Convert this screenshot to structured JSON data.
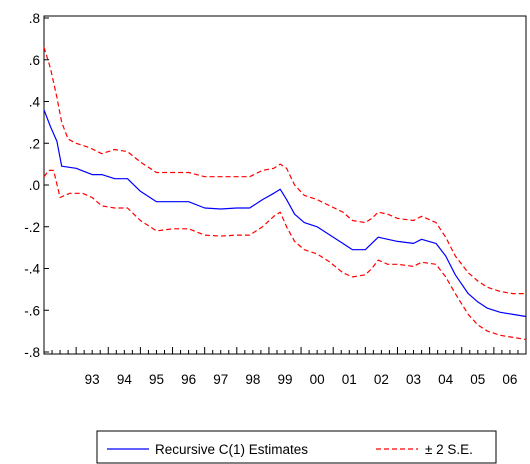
{
  "chart_data": {
    "type": "line",
    "title": "",
    "xlabel": "",
    "ylabel": "",
    "ylim": [
      -0.8,
      0.8
    ],
    "xlim": [
      1992.0,
      2007.0
    ],
    "grid": false,
    "legend_position": "bottom",
    "y_ticks": [
      {
        "value": 0.8,
        "label": ".8"
      },
      {
        "value": 0.6,
        "label": ".6"
      },
      {
        "value": 0.4,
        "label": ".4"
      },
      {
        "value": 0.2,
        "label": ".2"
      },
      {
        "value": 0.0,
        "label": ".0"
      },
      {
        "value": -0.2,
        "label": "-.2"
      },
      {
        "value": -0.4,
        "label": "-.4"
      },
      {
        "value": -0.6,
        "label": "-.6"
      },
      {
        "value": -0.8,
        "label": "-.8"
      }
    ],
    "x_ticks": [
      {
        "value": 1993.5,
        "label": "93"
      },
      {
        "value": 1994.5,
        "label": "94"
      },
      {
        "value": 1995.5,
        "label": "95"
      },
      {
        "value": 1996.5,
        "label": "96"
      },
      {
        "value": 1997.5,
        "label": "97"
      },
      {
        "value": 1998.5,
        "label": "98"
      },
      {
        "value": 1999.5,
        "label": "99"
      },
      {
        "value": 2000.5,
        "label": "00"
      },
      {
        "value": 2001.5,
        "label": "01"
      },
      {
        "value": 2002.5,
        "label": "02"
      },
      {
        "value": 2003.5,
        "label": "03"
      },
      {
        "value": 2004.5,
        "label": "04"
      },
      {
        "value": 2005.5,
        "label": "05"
      },
      {
        "value": 2006.5,
        "label": "06"
      }
    ],
    "series": [
      {
        "name": "Recursive C(1) Estimates",
        "color": "#0000ff",
        "style": "solid",
        "points": [
          [
            1992.0,
            0.36
          ],
          [
            1992.2,
            0.28
          ],
          [
            1992.4,
            0.21
          ],
          [
            1992.55,
            0.09
          ],
          [
            1993.0,
            0.08
          ],
          [
            1993.5,
            0.05
          ],
          [
            1993.8,
            0.05
          ],
          [
            1994.2,
            0.03
          ],
          [
            1994.6,
            0.03
          ],
          [
            1995.0,
            -0.03
          ],
          [
            1995.5,
            -0.08
          ],
          [
            1996.0,
            -0.08
          ],
          [
            1996.5,
            -0.08
          ],
          [
            1997.0,
            -0.11
          ],
          [
            1997.5,
            -0.115
          ],
          [
            1998.0,
            -0.11
          ],
          [
            1998.4,
            -0.11
          ],
          [
            1998.8,
            -0.07
          ],
          [
            1999.15,
            -0.04
          ],
          [
            1999.35,
            -0.02
          ],
          [
            1999.55,
            -0.07
          ],
          [
            1999.8,
            -0.14
          ],
          [
            2000.1,
            -0.18
          ],
          [
            2000.5,
            -0.2
          ],
          [
            2000.9,
            -0.24
          ],
          [
            2001.3,
            -0.28
          ],
          [
            2001.6,
            -0.31
          ],
          [
            2002.0,
            -0.31
          ],
          [
            2002.2,
            -0.28
          ],
          [
            2002.4,
            -0.25
          ],
          [
            2002.7,
            -0.26
          ],
          [
            2003.0,
            -0.27
          ],
          [
            2003.5,
            -0.28
          ],
          [
            2003.75,
            -0.26
          ],
          [
            2004.2,
            -0.28
          ],
          [
            2004.5,
            -0.34
          ],
          [
            2004.8,
            -0.43
          ],
          [
            2005.2,
            -0.52
          ],
          [
            2005.5,
            -0.56
          ],
          [
            2005.8,
            -0.59
          ],
          [
            2006.2,
            -0.61
          ],
          [
            2006.6,
            -0.62
          ],
          [
            2007.0,
            -0.63
          ]
        ]
      },
      {
        "name": "± 2 S.E.",
        "color": "#ff0000",
        "style": "dashed",
        "points": [
          [
            1992.0,
            0.66
          ],
          [
            1992.2,
            0.56
          ],
          [
            1992.4,
            0.42
          ],
          [
            1992.55,
            0.3
          ],
          [
            1992.75,
            0.22
          ],
          [
            1993.0,
            0.2
          ],
          [
            1993.4,
            0.18
          ],
          [
            1993.8,
            0.15
          ],
          [
            1994.2,
            0.17
          ],
          [
            1994.6,
            0.16
          ],
          [
            1995.0,
            0.11
          ],
          [
            1995.5,
            0.06
          ],
          [
            1996.0,
            0.06
          ],
          [
            1996.5,
            0.06
          ],
          [
            1997.0,
            0.04
          ],
          [
            1997.5,
            0.04
          ],
          [
            1998.0,
            0.04
          ],
          [
            1998.4,
            0.04
          ],
          [
            1998.8,
            0.07
          ],
          [
            1999.15,
            0.08
          ],
          [
            1999.35,
            0.1
          ],
          [
            1999.55,
            0.08
          ],
          [
            1999.8,
            0.0
          ],
          [
            2000.1,
            -0.05
          ],
          [
            2000.5,
            -0.07
          ],
          [
            2000.9,
            -0.1
          ],
          [
            2001.3,
            -0.13
          ],
          [
            2001.6,
            -0.17
          ],
          [
            2002.0,
            -0.18
          ],
          [
            2002.2,
            -0.16
          ],
          [
            2002.4,
            -0.13
          ],
          [
            2002.7,
            -0.14
          ],
          [
            2003.0,
            -0.16
          ],
          [
            2003.5,
            -0.17
          ],
          [
            2003.75,
            -0.15
          ],
          [
            2004.2,
            -0.18
          ],
          [
            2004.5,
            -0.25
          ],
          [
            2004.8,
            -0.34
          ],
          [
            2005.2,
            -0.42
          ],
          [
            2005.5,
            -0.46
          ],
          [
            2005.8,
            -0.49
          ],
          [
            2006.2,
            -0.51
          ],
          [
            2006.6,
            -0.52
          ],
          [
            2007.0,
            -0.52
          ]
        ]
      },
      {
        "name": "± 2 S.E.",
        "color": "#ff0000",
        "style": "dashed",
        "points": [
          [
            1992.0,
            0.04
          ],
          [
            1992.15,
            0.07
          ],
          [
            1992.3,
            0.07
          ],
          [
            1992.5,
            -0.06
          ],
          [
            1992.8,
            -0.04
          ],
          [
            1993.2,
            -0.04
          ],
          [
            1993.5,
            -0.06
          ],
          [
            1993.8,
            -0.1
          ],
          [
            1994.2,
            -0.11
          ],
          [
            1994.6,
            -0.11
          ],
          [
            1995.0,
            -0.17
          ],
          [
            1995.5,
            -0.22
          ],
          [
            1996.0,
            -0.21
          ],
          [
            1996.5,
            -0.21
          ],
          [
            1997.0,
            -0.24
          ],
          [
            1997.5,
            -0.245
          ],
          [
            1998.0,
            -0.24
          ],
          [
            1998.4,
            -0.24
          ],
          [
            1998.8,
            -0.2
          ],
          [
            1999.15,
            -0.15
          ],
          [
            1999.35,
            -0.13
          ],
          [
            1999.55,
            -0.2
          ],
          [
            1999.8,
            -0.27
          ],
          [
            2000.1,
            -0.31
          ],
          [
            2000.5,
            -0.33
          ],
          [
            2000.9,
            -0.37
          ],
          [
            2001.3,
            -0.42
          ],
          [
            2001.6,
            -0.44
          ],
          [
            2002.0,
            -0.43
          ],
          [
            2002.2,
            -0.4
          ],
          [
            2002.4,
            -0.36
          ],
          [
            2002.7,
            -0.38
          ],
          [
            2003.0,
            -0.38
          ],
          [
            2003.5,
            -0.39
          ],
          [
            2003.75,
            -0.37
          ],
          [
            2004.2,
            -0.38
          ],
          [
            2004.5,
            -0.44
          ],
          [
            2004.8,
            -0.52
          ],
          [
            2005.2,
            -0.62
          ],
          [
            2005.5,
            -0.67
          ],
          [
            2005.8,
            -0.7
          ],
          [
            2006.2,
            -0.72
          ],
          [
            2006.6,
            -0.73
          ],
          [
            2007.0,
            -0.74
          ]
        ]
      }
    ],
    "legend": [
      {
        "label": "Recursive C(1) Estimates",
        "color": "#0000ff",
        "style": "solid"
      },
      {
        "label": "± 2 S.E.",
        "color": "#ff0000",
        "style": "dashed"
      }
    ]
  }
}
